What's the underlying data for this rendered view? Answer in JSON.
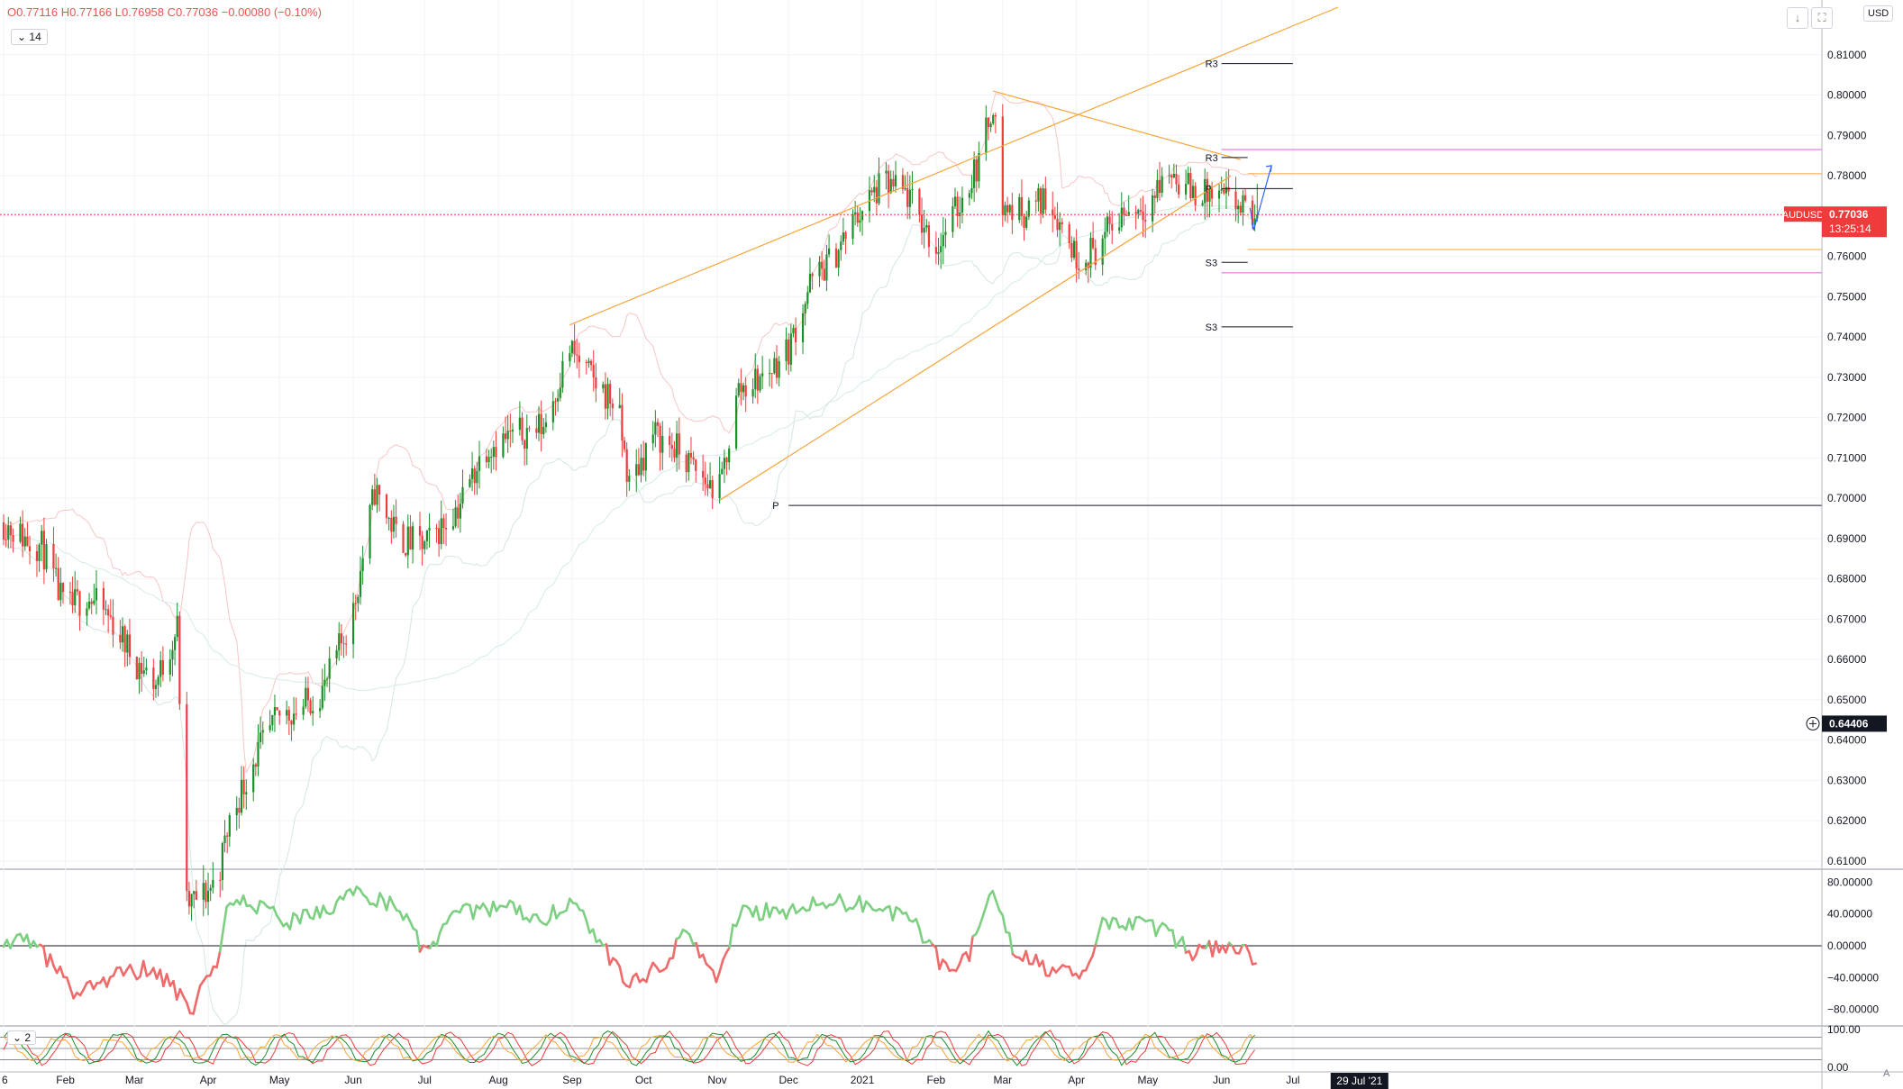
{
  "symbol": "AUDUSD",
  "legend": {
    "open": "O0.77116",
    "high": "H0.77166",
    "low": "L0.76958",
    "close": "C0.77036",
    "change": "−0.00080 (−0.10%)"
  },
  "indicator_inputs": {
    "rsi_period": "14",
    "stoch_param": "2"
  },
  "toolbar": {
    "scroll_down": "↓",
    "fullscreen": "⛶",
    "currency": "USD",
    "auto_scale": "A"
  },
  "price_tag": {
    "symbol": "AUDUSD",
    "price": "0.77036",
    "countdown": "13:25:14"
  },
  "crosshair_label": "0.64406",
  "time_label": "29 Jul '21",
  "x_axis_labels": [
    "6",
    "Feb",
    "Mar",
    "Apr",
    "May",
    "Jun",
    "Jul",
    "Aug",
    "Sep",
    "Oct",
    "Nov",
    "Dec",
    "2021",
    "Feb",
    "Mar",
    "Apr",
    "May",
    "Jun",
    "Jul"
  ],
  "colors": {
    "up": "#1b8f2a",
    "down": "#ef3b3b",
    "channel": "#f7a43b",
    "pivot": "#131722",
    "fib": "#e05ce0",
    "arrow": "#2962ff",
    "osc_up": "#7dcf82",
    "osc_down": "#ef6b6b"
  },
  "chart_data": [
    {
      "type": "candlestick",
      "title": "AUDUSD",
      "y_axis_labels": [
        "0.81000",
        "0.80000",
        "0.79000",
        "0.78000",
        "0.77000",
        "0.76000",
        "0.75000",
        "0.74000",
        "0.73000",
        "0.72000",
        "0.71000",
        "0.70000",
        "0.69000",
        "0.68000",
        "0.67000",
        "0.66000",
        "0.65000",
        "0.64000",
        "0.63000",
        "0.62000",
        "0.61000"
      ],
      "ylim": [
        0.6084,
        0.8218
      ],
      "last_price": 0.77036,
      "price_path": [
        [
          "2020-01-06",
          0.694
        ],
        [
          "2020-01-15",
          0.69
        ],
        [
          "2020-01-22",
          0.688
        ],
        [
          "2020-02-01",
          0.672
        ],
        [
          "2020-02-10",
          0.676
        ],
        [
          "2020-02-20",
          0.67
        ],
        [
          "2020-03-01",
          0.66
        ],
        [
          "2020-03-10",
          0.654
        ],
        [
          "2020-03-19",
          0.668
        ],
        [
          "2020-03-23",
          0.599
        ],
        [
          "2020-03-31",
          0.602
        ],
        [
          "2020-04-05",
          0.606
        ],
        [
          "2020-04-10",
          0.62
        ],
        [
          "2020-04-20",
          0.635
        ],
        [
          "2020-05-01",
          0.646
        ],
        [
          "2020-05-10",
          0.648
        ],
        [
          "2020-05-20",
          0.653
        ],
        [
          "2020-06-01",
          0.672
        ],
        [
          "2020-06-10",
          0.702
        ],
        [
          "2020-06-20",
          0.69
        ],
        [
          "2020-07-01",
          0.688
        ],
        [
          "2020-07-15",
          0.698
        ],
        [
          "2020-07-27",
          0.713
        ],
        [
          "2020-08-10",
          0.716
        ],
        [
          "2020-08-20",
          0.718
        ],
        [
          "2020-08-31",
          0.737
        ],
        [
          "2020-09-10",
          0.729
        ],
        [
          "2020-09-20",
          0.723
        ],
        [
          "2020-09-25",
          0.703
        ],
        [
          "2020-10-05",
          0.716
        ],
        [
          "2020-10-15",
          0.712
        ],
        [
          "2020-10-27",
          0.704
        ],
        [
          "2020-11-02",
          0.702
        ],
        [
          "2020-11-10",
          0.727
        ],
        [
          "2020-11-20",
          0.73
        ],
        [
          "2020-12-01",
          0.737
        ],
        [
          "2020-12-10",
          0.753
        ],
        [
          "2020-12-20",
          0.76
        ],
        [
          "2021-01-01",
          0.772
        ],
        [
          "2021-01-10",
          0.778
        ],
        [
          "2021-01-20",
          0.775
        ],
        [
          "2021-02-01",
          0.762
        ],
        [
          "2021-02-10",
          0.772
        ],
        [
          "2021-02-20",
          0.785
        ],
        [
          "2021-02-25",
          0.799
        ],
        [
          "2021-03-01",
          0.772
        ],
        [
          "2021-03-10",
          0.771
        ],
        [
          "2021-03-20",
          0.775
        ],
        [
          "2021-04-01",
          0.76
        ],
        [
          "2021-04-10",
          0.762
        ],
        [
          "2021-04-20",
          0.771
        ],
        [
          "2021-05-01",
          0.773
        ],
        [
          "2021-05-10",
          0.781
        ],
        [
          "2021-05-20",
          0.776
        ],
        [
          "2021-06-01",
          0.774
        ],
        [
          "2021-06-07",
          0.773
        ],
        [
          "2021-06-11",
          0.771
        ],
        [
          "2021-06-16",
          0.77
        ]
      ],
      "pivot_levels": [
        {
          "label": "R3",
          "value": 0.8078
        },
        {
          "label": "R3",
          "value": 0.7845
        },
        {
          "label": "P",
          "value": 0.7768
        },
        {
          "label": "S3",
          "value": 0.7585
        },
        {
          "label": "S3",
          "value": 0.7425
        },
        {
          "label": "P",
          "value": 0.6982
        }
      ],
      "channel_lines": [
        [
          [
            "2020-08-31",
            0.743
          ],
          [
            "2021-07-20",
            0.8218
          ]
        ],
        [
          [
            "2020-11-02",
            0.6995
          ],
          [
            "2021-06-05",
            0.78
          ]
        ],
        [
          [
            "2021-02-25",
            0.801
          ],
          [
            "2021-06-09",
            0.784
          ]
        ]
      ],
      "fib_levels": [
        0.7865,
        0.7559
      ],
      "orange_levels": [
        0.7805,
        0.7617
      ]
    },
    {
      "type": "line",
      "title": "Oscillator",
      "y_axis_labels": [
        "80.00000",
        "40.00000",
        "0.00000",
        "−40.00000",
        "−80.00000"
      ],
      "ylim": [
        -95,
        95
      ],
      "path": [
        [
          "2020-01-06",
          10
        ],
        [
          "2020-01-20",
          0
        ],
        [
          "2020-02-05",
          -60
        ],
        [
          "2020-02-20",
          -40
        ],
        [
          "2020-03-05",
          -30
        ],
        [
          "2020-03-15",
          -45
        ],
        [
          "2020-03-25",
          -80
        ],
        [
          "2020-04-05",
          -20
        ],
        [
          "2020-04-10",
          60
        ],
        [
          "2020-04-20",
          50
        ],
        [
          "2020-05-05",
          30
        ],
        [
          "2020-05-20",
          40
        ],
        [
          "2020-06-01",
          70
        ],
        [
          "2020-06-20",
          50
        ],
        [
          "2020-07-01",
          -10
        ],
        [
          "2020-07-15",
          40
        ],
        [
          "2020-08-01",
          50
        ],
        [
          "2020-08-20",
          35
        ],
        [
          "2020-09-01",
          55
        ],
        [
          "2020-09-15",
          -5
        ],
        [
          "2020-09-25",
          -50
        ],
        [
          "2020-10-10",
          -20
        ],
        [
          "2020-10-20",
          20
        ],
        [
          "2020-11-01",
          -50
        ],
        [
          "2020-11-10",
          40
        ],
        [
          "2020-12-01",
          45
        ],
        [
          "2020-12-20",
          55
        ],
        [
          "2021-01-10",
          50
        ],
        [
          "2021-01-25",
          20
        ],
        [
          "2021-02-05",
          -30
        ],
        [
          "2021-02-15",
          -10
        ],
        [
          "2021-02-25",
          70
        ],
        [
          "2021-03-05",
          0
        ],
        [
          "2021-03-20",
          -30
        ],
        [
          "2021-04-05",
          -40
        ],
        [
          "2021-04-12",
          30
        ],
        [
          "2021-04-25",
          30
        ],
        [
          "2021-05-10",
          15
        ],
        [
          "2021-05-20",
          -10
        ],
        [
          "2021-06-01",
          0
        ],
        [
          "2021-06-16",
          -15
        ]
      ]
    },
    {
      "type": "line",
      "title": "Stochastic",
      "y_axis_labels": [
        "100.00",
        "0.00"
      ],
      "ylim": [
        -5,
        105
      ]
    }
  ]
}
